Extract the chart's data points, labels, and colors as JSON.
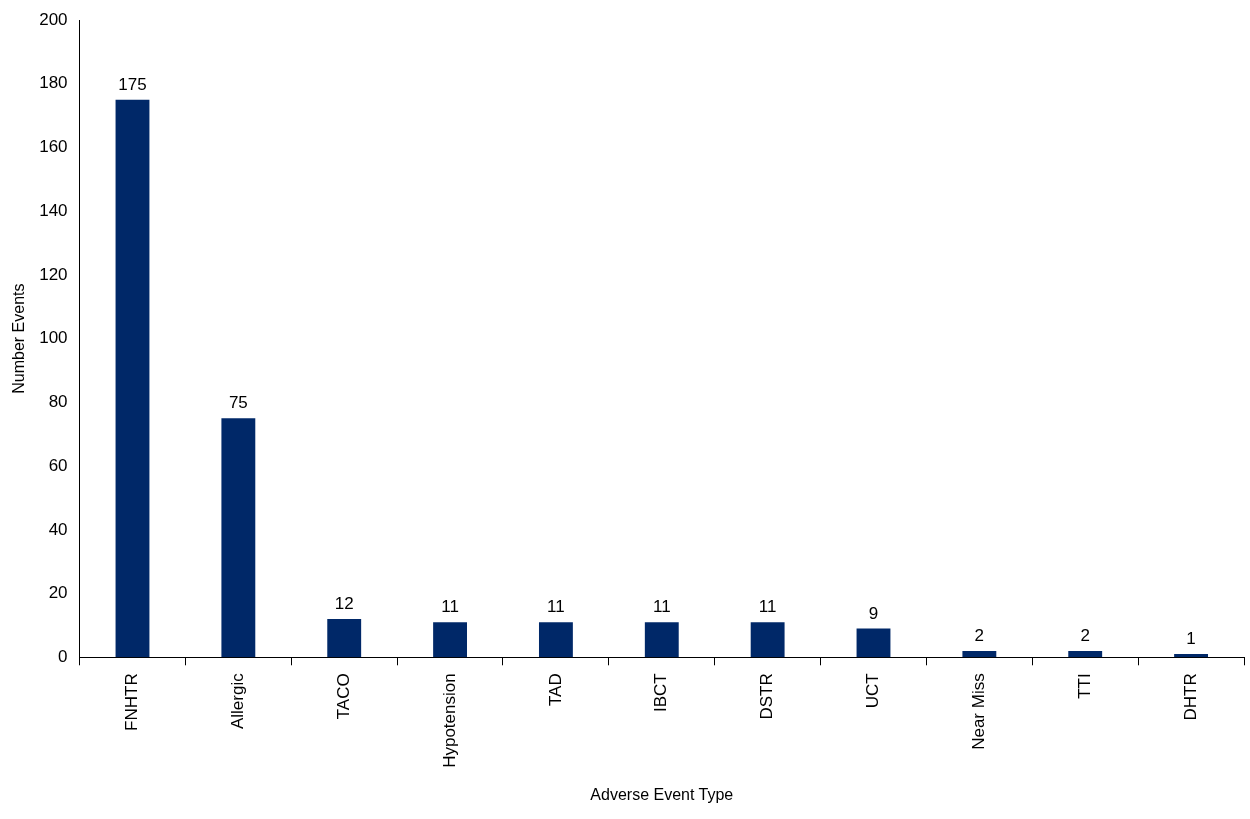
{
  "chart_data": {
    "type": "bar",
    "xlabel": "Adverse Event Type",
    "ylabel": "Number Events",
    "categories": [
      "FNHTR",
      "Allergic",
      "TACO",
      "Hypotension",
      "TAD",
      "IBCT",
      "DSTR",
      "UCT",
      "Near Miss",
      "TTI",
      "DHTR"
    ],
    "values": [
      175,
      75,
      12,
      11,
      11,
      11,
      11,
      9,
      2,
      2,
      1
    ],
    "color": "#002868",
    "ylim": [
      0,
      200
    ],
    "yticks": [
      0,
      20,
      40,
      60,
      80,
      100,
      120,
      140,
      160,
      180,
      200
    ],
    "grid": false,
    "legend": false,
    "data_labels": true
  }
}
